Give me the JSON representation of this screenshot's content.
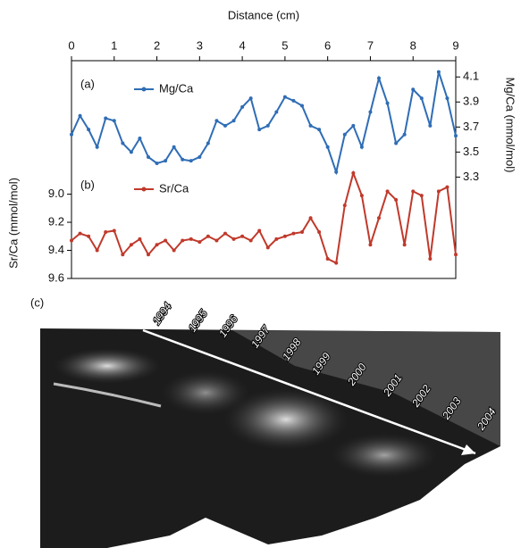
{
  "chart_data": {
    "type": "line",
    "xlabel": "Distance (cm)",
    "ylabel": "Sr/Ca (mmol/mol)",
    "y2label": "Mg/Ca (mmol/mol)",
    "panel_labels": [
      "(a)",
      "(b)",
      "(c)"
    ],
    "x": [
      0,
      0.2,
      0.4,
      0.6,
      0.8,
      1.0,
      1.2,
      1.4,
      1.6,
      1.8,
      2.0,
      2.2,
      2.4,
      2.6,
      2.8,
      3.0,
      3.2,
      3.4,
      3.6,
      3.8,
      4.0,
      4.2,
      4.4,
      4.6,
      4.8,
      5.0,
      5.2,
      5.4,
      5.6,
      5.8,
      6.0,
      6.2,
      6.4,
      6.6,
      6.8,
      7.0,
      7.2,
      7.4,
      7.6,
      7.8,
      8.0,
      8.2,
      8.4,
      8.6,
      8.8,
      9.0
    ],
    "xlim": [
      0,
      9
    ],
    "xticks": [
      0,
      1,
      2,
      3,
      4,
      5,
      6,
      7,
      8,
      9
    ],
    "ylim": [
      9.6,
      8.05
    ],
    "yticks": [
      {
        "value": 9.0,
        "label": "9.0"
      },
      9.2,
      9.4,
      9.6
    ],
    "y2lim": [
      2.49,
      4.23
    ],
    "y2ticks": [
      3.3,
      3.5,
      3.7,
      3.9,
      4.1
    ],
    "series": [
      {
        "name": "Mg/Ca",
        "color": "#2f6db5",
        "axis": "y2",
        "values": [
          3.64,
          3.79,
          3.68,
          3.54,
          3.77,
          3.75,
          3.57,
          3.5,
          3.61,
          3.46,
          3.41,
          3.43,
          3.54,
          3.44,
          3.43,
          3.46,
          3.57,
          3.75,
          3.71,
          3.75,
          3.86,
          3.93,
          3.68,
          3.71,
          3.82,
          3.94,
          3.91,
          3.87,
          3.71,
          3.68,
          3.54,
          3.34,
          3.64,
          3.71,
          3.54,
          3.82,
          4.09,
          3.89,
          3.57,
          3.64,
          4.0,
          3.93,
          3.71,
          4.14,
          3.93,
          3.63
        ]
      },
      {
        "name": "Sr/Ca",
        "color": "#c0392b",
        "values": [
          9.33,
          9.28,
          9.3,
          9.4,
          9.27,
          9.26,
          9.43,
          9.36,
          9.32,
          9.43,
          9.36,
          9.33,
          9.4,
          9.33,
          9.32,
          9.34,
          9.3,
          9.33,
          9.28,
          9.32,
          9.3,
          9.33,
          9.26,
          9.38,
          9.32,
          9.3,
          9.28,
          9.27,
          9.17,
          9.27,
          9.46,
          9.49,
          9.08,
          8.85,
          9.01,
          9.36,
          9.17,
          8.98,
          9.04,
          9.36,
          8.98,
          9.01,
          9.46,
          8.98,
          8.95,
          9.43
        ]
      }
    ],
    "annotations": [
      "1994",
      "1995",
      "1996",
      "1997",
      "1998",
      "1999",
      "2000",
      "2001",
      "2002",
      "2003",
      "2004"
    ]
  }
}
